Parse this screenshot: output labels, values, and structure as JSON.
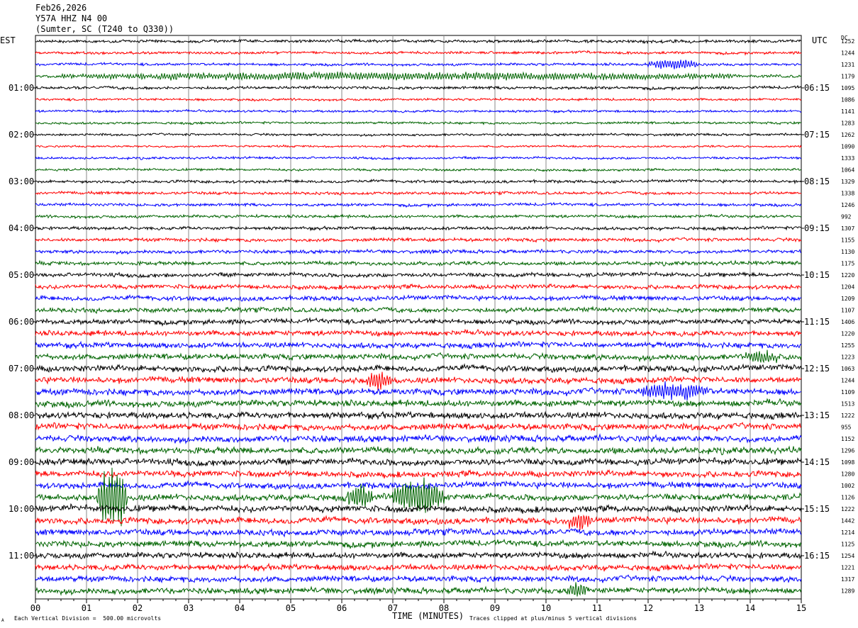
{
  "header": {
    "date": "Feb26,2026",
    "station": "Y57A HHZ N4 00",
    "location": "(Sumter, SC (T240 to Q330))"
  },
  "labels": {
    "left_tz": "EST",
    "right_tz": "UTC",
    "dc": "DC",
    "xlabel": "TIME (MINUTES)",
    "scale_note": "Each Vertical Division =  500.00 microvolts",
    "clip_note": "Traces clipped at plus/minus 5 vertical divisions",
    "corner_mark": "A"
  },
  "chart_data": {
    "type": "line",
    "title": "Y57A HHZ N4 00",
    "xlabel": "TIME (MINUTES)",
    "x_ticks": [
      "00",
      "01",
      "02",
      "03",
      "04",
      "05",
      "06",
      "07",
      "08",
      "09",
      "10",
      "11",
      "12",
      "13",
      "14",
      "15"
    ],
    "xlim": [
      0,
      15
    ],
    "grid": true,
    "colors": [
      "#000000",
      "#ff0000",
      "#0000ff",
      "#006400"
    ],
    "left_hour_labels": [
      {
        "row": 4,
        "text": "01:00"
      },
      {
        "row": 8,
        "text": "02:00"
      },
      {
        "row": 12,
        "text": "03:00"
      },
      {
        "row": 16,
        "text": "04:00"
      },
      {
        "row": 20,
        "text": "05:00"
      },
      {
        "row": 24,
        "text": "06:00"
      },
      {
        "row": 28,
        "text": "07:00"
      },
      {
        "row": 32,
        "text": "08:00"
      },
      {
        "row": 36,
        "text": "09:00"
      },
      {
        "row": 40,
        "text": "10:00"
      },
      {
        "row": 44,
        "text": "11:00"
      }
    ],
    "right_hour_labels": [
      {
        "row": 4,
        "text": "06:15"
      },
      {
        "row": 8,
        "text": "07:15"
      },
      {
        "row": 12,
        "text": "08:15"
      },
      {
        "row": 16,
        "text": "09:15"
      },
      {
        "row": 20,
        "text": "10:15"
      },
      {
        "row": 24,
        "text": "11:15"
      },
      {
        "row": 28,
        "text": "12:15"
      },
      {
        "row": 32,
        "text": "13:15"
      },
      {
        "row": 36,
        "text": "14:15"
      },
      {
        "row": 40,
        "text": "15:15"
      },
      {
        "row": 44,
        "text": "16:15"
      }
    ],
    "dc_offsets": [
      "1252",
      "1244",
      "1231",
      "1179",
      "1095",
      "1086",
      "1141",
      "1283",
      "1262",
      "1090",
      "1333",
      "1064",
      "1329",
      "1338",
      "1246",
      "992",
      "1307",
      "1155",
      "1130",
      "1175",
      "1220",
      "1204",
      "1209",
      "1107",
      "1406",
      "1220",
      "1255",
      "1223",
      "1063",
      "1244",
      "1109",
      "1513",
      "1222",
      "955",
      "1152",
      "1296",
      "1098",
      "1280",
      "1002",
      "1126",
      "1222",
      "1442",
      "1214",
      "1125",
      "1254",
      "1221",
      "1317",
      "1289"
    ],
    "trace_activity": [
      1.0,
      0.9,
      0.9,
      1.0,
      1.0,
      0.8,
      0.8,
      0.8,
      0.8,
      0.7,
      0.8,
      0.8,
      1.0,
      1.0,
      1.0,
      1.0,
      1.1,
      1.2,
      1.2,
      1.3,
      1.4,
      1.5,
      1.6,
      1.6,
      1.7,
      1.8,
      1.9,
      2.0,
      2.1,
      2.1,
      2.2,
      2.2,
      2.2,
      2.2,
      2.2,
      2.2,
      2.2,
      2.1,
      2.1,
      2.2,
      2.2,
      2.2,
      2.1,
      2.1,
      2.0,
      2.0,
      2.0,
      2.0
    ],
    "events": [
      {
        "row": 39,
        "start_min": 1.2,
        "end_min": 1.8,
        "amplitude_div": 5
      },
      {
        "row": 39,
        "start_min": 6.1,
        "end_min": 6.6,
        "amplitude_div": 2
      },
      {
        "row": 39,
        "start_min": 7.0,
        "end_min": 8.0,
        "amplitude_div": 3
      },
      {
        "row": 29,
        "start_min": 6.5,
        "end_min": 7.0,
        "amplitude_div": 1.5
      },
      {
        "row": 41,
        "start_min": 10.4,
        "end_min": 10.9,
        "amplitude_div": 1.5
      },
      {
        "row": 2,
        "start_min": 12.0,
        "end_min": 13.0,
        "amplitude_div": 0.8
      },
      {
        "row": 3,
        "start_min": 0.5,
        "end_min": 14.0,
        "amplitude_div": 0.6
      },
      {
        "row": 30,
        "start_min": 11.8,
        "end_min": 13.2,
        "amplitude_div": 1.3
      },
      {
        "row": 27,
        "start_min": 13.8,
        "end_min": 14.6,
        "amplitude_div": 1.0
      },
      {
        "row": 47,
        "start_min": 10.4,
        "end_min": 10.8,
        "amplitude_div": 1.2
      }
    ]
  }
}
